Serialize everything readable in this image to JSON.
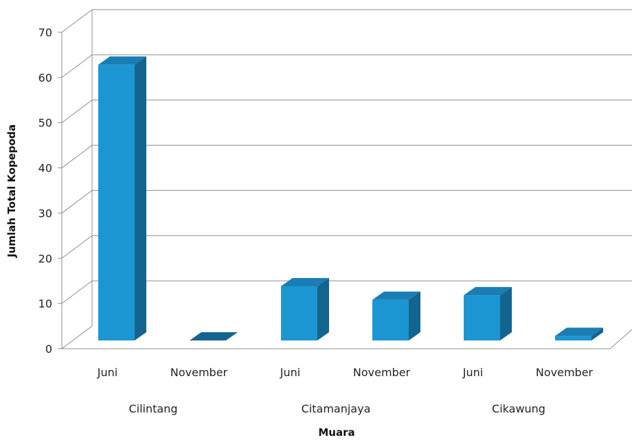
{
  "chart_data": {
    "type": "bar",
    "style": "3d-column",
    "ylabel": "Jumlah Total Kopepoda",
    "xlabel": "Muara",
    "ylim": [
      0,
      70
    ],
    "yticks": [
      0,
      10,
      20,
      30,
      40,
      50,
      60,
      70
    ],
    "grid": true,
    "groups": [
      {
        "name": "Cilintang",
        "categories": [
          "Juni",
          "November"
        ],
        "values": [
          61,
          0
        ]
      },
      {
        "name": "Citamanjaya",
        "categories": [
          "Juni",
          "November"
        ],
        "values": [
          12,
          9
        ]
      },
      {
        "name": "Cikawung",
        "categories": [
          "Juni",
          "November"
        ],
        "values": [
          10,
          1
        ]
      }
    ],
    "colors": {
      "bar_front": "#1b96d2",
      "bar_side": "#13648f",
      "bar_top": "#1a7db3",
      "grid": "#8c8c8c"
    }
  }
}
